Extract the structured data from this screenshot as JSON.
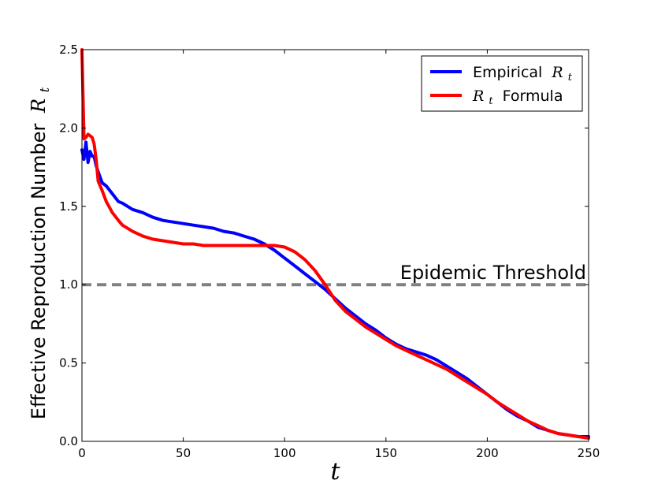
{
  "chart_data": {
    "type": "line",
    "title": "",
    "xlabel": "t",
    "ylabel": "Effective Reproduction Number",
    "ylabel_math": "R",
    "ylabel_math_sub": "t",
    "xlim": [
      0,
      250
    ],
    "ylim": [
      0.0,
      2.5
    ],
    "xticks": [
      0,
      50,
      100,
      150,
      200,
      250
    ],
    "xtick_labels": [
      "0",
      "50",
      "100",
      "150",
      "200",
      "250"
    ],
    "yticks": [
      0.0,
      0.5,
      1.0,
      1.5,
      2.0,
      2.5
    ],
    "ytick_labels": [
      "0.0",
      "0.5",
      "1.0",
      "1.5",
      "2.0",
      "2.5"
    ],
    "grid": false,
    "legend_position": "top-right",
    "threshold": {
      "y": 1.0,
      "label": "Epidemic Threshold",
      "color": "#808080"
    },
    "series": [
      {
        "name": "Empirical",
        "legend_text": "Empirical",
        "legend_math": "R",
        "legend_math_sub": "t",
        "legend_math_first": false,
        "color": "#0000ff",
        "x": [
          0,
          1,
          2,
          3,
          4,
          5,
          6,
          7,
          8,
          10,
          12,
          15,
          18,
          20,
          25,
          30,
          35,
          40,
          45,
          50,
          55,
          60,
          65,
          70,
          75,
          80,
          85,
          90,
          95,
          100,
          105,
          110,
          115,
          120,
          125,
          130,
          135,
          140,
          145,
          150,
          155,
          160,
          165,
          170,
          175,
          180,
          185,
          190,
          195,
          200,
          205,
          210,
          215,
          220,
          225,
          230,
          235,
          240,
          245,
          250
        ],
        "y": [
          1.86,
          1.8,
          1.91,
          1.78,
          1.85,
          1.82,
          1.82,
          1.76,
          1.72,
          1.65,
          1.63,
          1.58,
          1.53,
          1.52,
          1.48,
          1.46,
          1.43,
          1.41,
          1.4,
          1.39,
          1.38,
          1.37,
          1.36,
          1.34,
          1.33,
          1.31,
          1.29,
          1.26,
          1.22,
          1.17,
          1.12,
          1.07,
          1.02,
          0.97,
          0.91,
          0.85,
          0.8,
          0.75,
          0.71,
          0.66,
          0.62,
          0.59,
          0.57,
          0.55,
          0.52,
          0.48,
          0.44,
          0.4,
          0.35,
          0.3,
          0.25,
          0.2,
          0.16,
          0.13,
          0.09,
          0.07,
          0.05,
          0.04,
          0.03,
          0.03
        ]
      },
      {
        "name": "Rt Formula",
        "legend_text": "Formula",
        "legend_math": "R",
        "legend_math_sub": "t",
        "legend_math_first": true,
        "color": "#ff0000",
        "x": [
          0,
          1,
          2,
          3,
          4,
          5,
          6,
          7,
          8,
          10,
          12,
          15,
          18,
          20,
          25,
          30,
          35,
          40,
          45,
          50,
          55,
          60,
          65,
          70,
          75,
          80,
          85,
          90,
          95,
          100,
          105,
          110,
          115,
          120,
          125,
          130,
          135,
          140,
          145,
          150,
          155,
          160,
          165,
          170,
          175,
          180,
          185,
          190,
          195,
          200,
          205,
          210,
          215,
          220,
          225,
          230,
          235,
          240,
          245,
          250
        ],
        "y": [
          2.5,
          1.93,
          1.94,
          1.96,
          1.95,
          1.94,
          1.9,
          1.8,
          1.66,
          1.6,
          1.53,
          1.46,
          1.41,
          1.38,
          1.34,
          1.31,
          1.29,
          1.28,
          1.27,
          1.26,
          1.26,
          1.25,
          1.25,
          1.25,
          1.25,
          1.25,
          1.25,
          1.25,
          1.25,
          1.24,
          1.21,
          1.16,
          1.09,
          1.0,
          0.9,
          0.83,
          0.78,
          0.73,
          0.69,
          0.65,
          0.61,
          0.58,
          0.55,
          0.52,
          0.49,
          0.46,
          0.42,
          0.38,
          0.34,
          0.3,
          0.25,
          0.21,
          0.17,
          0.13,
          0.1,
          0.07,
          0.05,
          0.04,
          0.03,
          0.02
        ]
      }
    ]
  }
}
